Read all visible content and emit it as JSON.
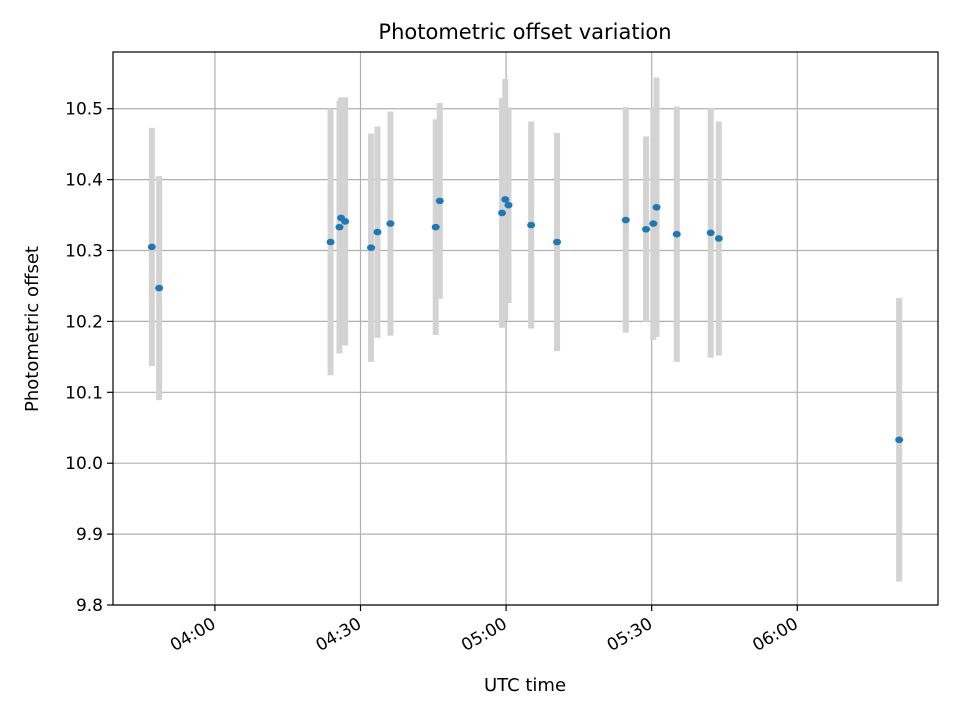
{
  "chart_data": {
    "type": "scatter",
    "title": "Photometric offset variation",
    "xlabel": "UTC time",
    "ylabel": "Photometric offset",
    "x_time_range": [
      "03:39",
      "06:29"
    ],
    "ylim": [
      9.8,
      10.58
    ],
    "xticks": [
      "04:00",
      "04:30",
      "05:00",
      "05:30",
      "06:00"
    ],
    "yticks": [
      9.8,
      9.9,
      10.0,
      10.1,
      10.2,
      10.3,
      10.4,
      10.5
    ],
    "grid": true,
    "legend": "none",
    "colors": {
      "point": "#1f77b4",
      "errorbar": "#d3d3d3",
      "grid": "#b0b0b0"
    },
    "series": [
      {
        "points": [
          {
            "t": "03:47:00",
            "y": 10.305,
            "yerr": 0.168
          },
          {
            "t": "03:48:30",
            "y": 10.247,
            "yerr": 0.158
          },
          {
            "t": "04:23:50",
            "y": 10.312,
            "yerr": 0.188
          },
          {
            "t": "04:25:40",
            "y": 10.333,
            "yerr": 0.178
          },
          {
            "t": "04:26:00",
            "y": 10.346,
            "yerr": 0.17
          },
          {
            "t": "04:26:50",
            "y": 10.341,
            "yerr": 0.175
          },
          {
            "t": "04:32:10",
            "y": 10.304,
            "yerr": 0.161
          },
          {
            "t": "04:33:30",
            "y": 10.326,
            "yerr": 0.149
          },
          {
            "t": "04:36:10",
            "y": 10.338,
            "yerr": 0.158
          },
          {
            "t": "04:45:30",
            "y": 10.333,
            "yerr": 0.152
          },
          {
            "t": "04:46:20",
            "y": 10.37,
            "yerr": 0.138
          },
          {
            "t": "04:59:10",
            "y": 10.353,
            "yerr": 0.162
          },
          {
            "t": "04:59:50",
            "y": 10.372,
            "yerr": 0.17
          },
          {
            "t": "05:00:30",
            "y": 10.364,
            "yerr": 0.138
          },
          {
            "t": "05:05:10",
            "y": 10.336,
            "yerr": 0.146
          },
          {
            "t": "05:10:30",
            "y": 10.312,
            "yerr": 0.154
          },
          {
            "t": "05:24:40",
            "y": 10.343,
            "yerr": 0.159
          },
          {
            "t": "05:28:50",
            "y": 10.33,
            "yerr": 0.131
          },
          {
            "t": "05:30:20",
            "y": 10.338,
            "yerr": 0.164
          },
          {
            "t": "05:31:00",
            "y": 10.361,
            "yerr": 0.183
          },
          {
            "t": "05:35:10",
            "y": 10.323,
            "yerr": 0.18
          },
          {
            "t": "05:42:10",
            "y": 10.325,
            "yerr": 0.176
          },
          {
            "t": "05:43:50",
            "y": 10.317,
            "yerr": 0.165
          },
          {
            "t": "06:21:00",
            "y": 10.033,
            "yerr": 0.2
          }
        ]
      }
    ]
  }
}
